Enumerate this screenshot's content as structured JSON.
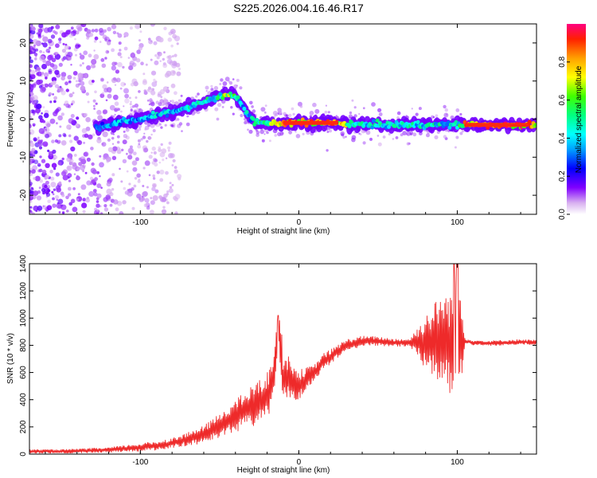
{
  "title": "S225.2026.004.16.46.R17",
  "chart_data": [
    {
      "type": "heatmap",
      "xlabel": "Height of straight line (km)",
      "ylabel": "Frequency (Hz)",
      "xlim": [
        -170,
        150
      ],
      "ylim": [
        -25,
        25
      ],
      "x_ticks": [
        -100,
        0,
        100
      ],
      "y_ticks": [
        -20,
        -10,
        0,
        10,
        20
      ],
      "colorbar": {
        "label": "Normalized spectral amplitude",
        "range": [
          0.0,
          1.0
        ],
        "ticks": [
          0.0,
          0.2,
          0.4,
          0.6,
          0.8
        ],
        "tick_labels": [
          "0.0",
          "0.2",
          "0.4",
          "0.6",
          "0.8"
        ]
      },
      "ridge": {
        "x": [
          -125,
          -115,
          -100,
          -90,
          -80,
          -70,
          -60,
          -50,
          -45,
          -40,
          -35,
          -30,
          -25,
          -20,
          -15,
          -10,
          0,
          20,
          40,
          60,
          80,
          100,
          105,
          120,
          140,
          148
        ],
        "y": [
          -2,
          -1,
          0,
          1,
          2,
          3,
          4.5,
          6,
          6.5,
          6,
          3,
          0,
          -1,
          -1,
          -1,
          -1,
          -1,
          -1,
          -1.5,
          -1.5,
          -1.5,
          -1.5,
          -1.5,
          -1.5,
          -1.5,
          -1.5
        ],
        "amplitude": [
          0.35,
          0.45,
          0.4,
          0.45,
          0.45,
          0.5,
          0.5,
          0.55,
          0.75,
          0.55,
          0.45,
          0.45,
          0.55,
          0.6,
          0.8,
          0.95,
          0.98,
          0.95,
          0.5,
          0.5,
          0.5,
          0.5,
          0.95,
          0.98,
          0.95,
          0.9
        ]
      }
    },
    {
      "type": "line",
      "xlabel": "Height of straight line (km)",
      "ylabel": "SNR (10 * v/v)",
      "xlim": [
        -170,
        150
      ],
      "ylim": [
        0,
        1400
      ],
      "x_ticks": [
        -100,
        0,
        100
      ],
      "y_ticks": [
        0,
        200,
        400,
        600,
        800,
        1000,
        1200,
        1400
      ],
      "series": [
        {
          "name": "SNR",
          "color": "#ee2a2a",
          "x": [
            -170,
            -150,
            -120,
            -100,
            -90,
            -80,
            -70,
            -60,
            -50,
            -40,
            -30,
            -20,
            -15,
            -13,
            -10,
            -5,
            0,
            5,
            10,
            15,
            20,
            25,
            30,
            40,
            50,
            60,
            70,
            80,
            85,
            90,
            95,
            98,
            100,
            103,
            105,
            110,
            120,
            130,
            140,
            150
          ],
          "y": [
            20,
            20,
            30,
            50,
            60,
            80,
            110,
            140,
            210,
            280,
            350,
            420,
            600,
            1020,
            550,
            560,
            500,
            560,
            600,
            680,
            710,
            760,
            800,
            830,
            830,
            820,
            820,
            825,
            830,
            850,
            820,
            830,
            900,
            850,
            830,
            820,
            815,
            820,
            825,
            820
          ],
          "oscillation_amplitude": [
            15,
            15,
            20,
            30,
            35,
            40,
            50,
            70,
            90,
            120,
            150,
            180,
            200,
            250,
            200,
            150,
            120,
            80,
            60,
            60,
            60,
            50,
            45,
            40,
            35,
            30,
            30,
            200,
            280,
            330,
            370,
            420,
            420,
            300,
            20,
            20,
            20,
            20,
            20,
            20
          ]
        }
      ]
    }
  ]
}
